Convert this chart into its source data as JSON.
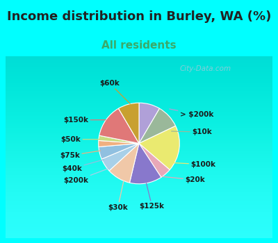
{
  "title": "Income distribution in Burley, WA (%)",
  "subtitle": "All residents",
  "bg_cyan": "#00FFFF",
  "bg_chart": "#e8f5ee",
  "title_color": "#222222",
  "subtitle_color": "#3aaa6a",
  "watermark": "City-Data.com",
  "labels": [
    "> $200k",
    "$10k",
    "$100k",
    "$20k",
    "$125k",
    "$30k",
    "$200k",
    "$40k",
    "$75k",
    "$50k",
    "$150k",
    "$60k"
  ],
  "values": [
    8.5,
    9.5,
    18.5,
    4.5,
    13.0,
    9.5,
    5.5,
    5.0,
    2.5,
    2.0,
    13.5,
    8.5
  ],
  "colors": [
    "#b0a0d8",
    "#9ab89a",
    "#eaea70",
    "#e8a8b8",
    "#8878cc",
    "#f0c8a8",
    "#a8d0e8",
    "#90c0e0",
    "#f0b080",
    "#c8dc80",
    "#e07878",
    "#c8a030"
  ],
  "title_fontsize": 13,
  "subtitle_fontsize": 11,
  "label_fontsize": 7.5
}
